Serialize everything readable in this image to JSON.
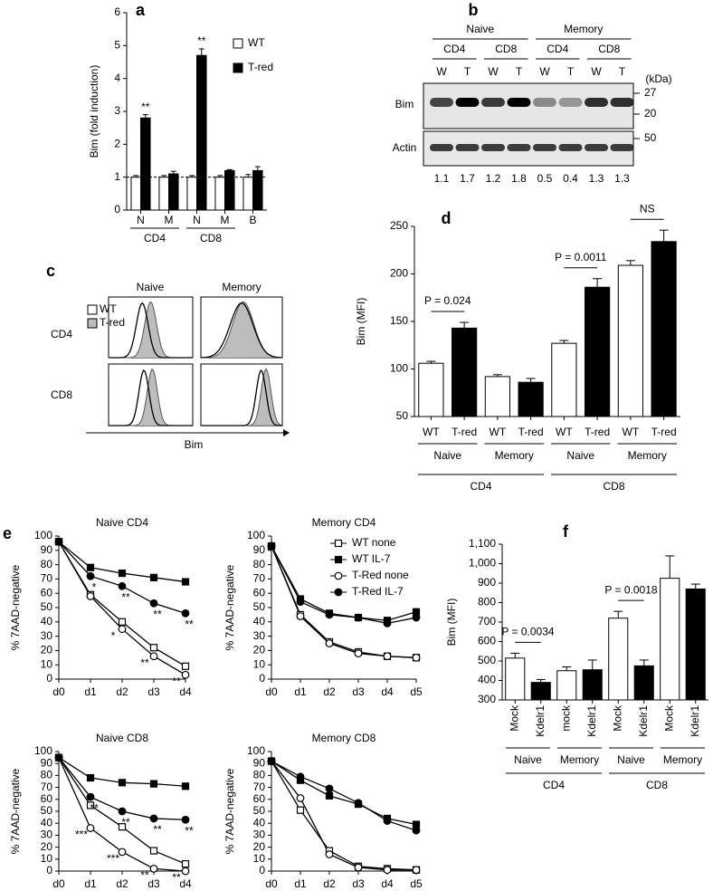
{
  "chart_data": [
    {
      "panel": "a",
      "type": "bar",
      "y_label": "Bim (fold induction)",
      "categories": [
        "N",
        "M",
        "N",
        "M",
        "B"
      ],
      "groups": [
        "CD4",
        "CD8"
      ],
      "series": [
        {
          "name": "WT",
          "color": "#ffffff",
          "values": [
            1,
            1,
            1,
            1,
            1
          ],
          "errors": [
            0.05,
            0.05,
            0.05,
            0.05,
            0.08
          ]
        },
        {
          "name": "T-red",
          "color": "#000000",
          "values": [
            2.8,
            1.1,
            4.7,
            1.2,
            1.2
          ],
          "errors": [
            0.1,
            0.08,
            0.2,
            0.03,
            0.12
          ],
          "annotations": [
            "**",
            null,
            "**",
            null,
            null
          ]
        }
      ],
      "ylim": [
        0,
        6
      ],
      "yticks": [
        0,
        1,
        2,
        3,
        4,
        5,
        6
      ],
      "reference_line": 1,
      "legend": "upper right"
    },
    {
      "panel": "d",
      "type": "bar",
      "y_label": "Bim (MFI)",
      "categories": [
        "WT",
        "T-red",
        "WT",
        "T-red",
        "WT",
        "T-red",
        "WT",
        "T-red"
      ],
      "values": [
        106,
        143,
        92,
        86,
        127,
        186,
        209,
        234
      ],
      "errors": [
        2,
        6,
        2,
        4,
        3,
        9,
        5,
        12
      ],
      "colors": [
        "#ffffff",
        "#000000",
        "#ffffff",
        "#000000",
        "#ffffff",
        "#000000",
        "#ffffff",
        "#000000"
      ],
      "subgroups": [
        "Naive",
        "Memory",
        "Naive",
        "Memory"
      ],
      "groups": [
        "CD4",
        "CD8"
      ],
      "comparisons": [
        "P = 0.024",
        null,
        null,
        null,
        "P = 0.0011",
        null,
        "NS",
        null
      ],
      "ylim": [
        50,
        250
      ],
      "yticks": [
        50,
        100,
        150,
        200,
        250
      ]
    },
    {
      "panel": "e",
      "type": "line",
      "title": "Naive CD4",
      "y_label": "% 7AAD-negative",
      "x": [
        "d0",
        "d1",
        "d2",
        "d3",
        "d4"
      ],
      "series": [
        {
          "name": "WT none",
          "marker": "square",
          "color": "#ffffff",
          "values": [
            96,
            59,
            40,
            22,
            9
          ]
        },
        {
          "name": "WT IL-7",
          "marker": "square",
          "color": "#000000",
          "values": [
            96,
            78,
            74,
            71,
            68
          ]
        },
        {
          "name": "T-Red none",
          "marker": "circle",
          "color": "#ffffff",
          "values": [
            96,
            58,
            35,
            16,
            3
          ],
          "annotations": [
            null,
            null,
            "*",
            "**",
            "**"
          ]
        },
        {
          "name": "T-Red IL-7",
          "marker": "circle",
          "color": "#000000",
          "values": [
            96,
            72,
            65,
            53,
            46
          ],
          "annotations": [
            null,
            "*",
            "**",
            "**",
            "**"
          ]
        }
      ],
      "ylim": [
        0,
        100
      ],
      "yticks": [
        0,
        10,
        20,
        30,
        40,
        50,
        60,
        70,
        80,
        90,
        100
      ]
    },
    {
      "type": "line",
      "title": "Memory CD4",
      "y_label": "% 7AAD-negative",
      "x": [
        "d0",
        "d1",
        "d2",
        "d3",
        "d4",
        "d5"
      ],
      "series": [
        {
          "name": "WT none",
          "marker": "square",
          "color": "#ffffff",
          "values": [
            93,
            45,
            26,
            19,
            16,
            15
          ]
        },
        {
          "name": "WT IL-7",
          "marker": "square",
          "color": "#000000",
          "values": [
            93,
            56,
            46,
            43,
            41,
            47
          ]
        },
        {
          "name": "T-Red none",
          "marker": "circle",
          "color": "#ffffff",
          "values": [
            93,
            44,
            25,
            18,
            16,
            15
          ]
        },
        {
          "name": "T-Red IL-7",
          "marker": "circle",
          "color": "#000000",
          "values": [
            93,
            54,
            45,
            43,
            39,
            43
          ]
        }
      ],
      "ylim": [
        0,
        100
      ],
      "yticks": [
        0,
        10,
        20,
        30,
        40,
        50,
        60,
        70,
        80,
        90,
        100
      ],
      "legend": "upper right"
    },
    {
      "type": "line",
      "title": "Naive CD8",
      "y_label": "% 7AAD-negative",
      "x": [
        "d0",
        "d1",
        "d2",
        "d3",
        "d4"
      ],
      "series": [
        {
          "name": "WT none",
          "marker": "square",
          "color": "#ffffff",
          "values": [
            95,
            55,
            37,
            17,
            6
          ]
        },
        {
          "name": "WT IL-7",
          "marker": "square",
          "color": "#000000",
          "values": [
            95,
            78,
            74,
            73,
            71
          ]
        },
        {
          "name": "T-Red none",
          "marker": "circle",
          "color": "#ffffff",
          "values": [
            95,
            36,
            16,
            2,
            0
          ],
          "annotations": [
            null,
            "***",
            "***",
            "**",
            "**"
          ]
        },
        {
          "name": "T-Red IL-7",
          "marker": "circle",
          "color": "#000000",
          "values": [
            95,
            62,
            50,
            44,
            43
          ],
          "annotations": [
            null,
            "**",
            "**",
            "**",
            "**"
          ]
        }
      ],
      "ylim": [
        0,
        100
      ],
      "yticks": [
        0,
        10,
        20,
        30,
        40,
        50,
        60,
        70,
        80,
        90,
        100
      ]
    },
    {
      "type": "line",
      "title": "Memory CD8",
      "y_label": "% 7AAD-negative",
      "x": [
        "d0",
        "d1",
        "d2",
        "d3",
        "d4",
        "d5"
      ],
      "series": [
        {
          "name": "WT none",
          "marker": "square",
          "color": "#ffffff",
          "values": [
            92,
            51,
            17,
            4,
            2,
            1
          ]
        },
        {
          "name": "WT IL-7",
          "marker": "square",
          "color": "#000000",
          "values": [
            92,
            76,
            63,
            56,
            44,
            39
          ]
        },
        {
          "name": "T-Red none",
          "marker": "circle",
          "color": "#ffffff",
          "values": [
            92,
            61,
            14,
            3,
            1,
            1
          ]
        },
        {
          "name": "T-Red IL-7",
          "marker": "circle",
          "color": "#000000",
          "values": [
            92,
            79,
            69,
            57,
            42,
            34
          ]
        }
      ],
      "ylim": [
        0,
        100
      ],
      "yticks": [
        0,
        10,
        20,
        30,
        40,
        50,
        60,
        70,
        80,
        90,
        100
      ]
    },
    {
      "panel": "f",
      "type": "bar",
      "y_label": "Bim (MFI)",
      "categories": [
        "Mock",
        "Kdelr1",
        "mock",
        "Kdelr1",
        "Mock",
        "Kdelr1",
        "Mock",
        "Kdelr1"
      ],
      "values": [
        515,
        390,
        450,
        455,
        720,
        475,
        925,
        870
      ],
      "errors": [
        25,
        15,
        20,
        50,
        35,
        30,
        115,
        25
      ],
      "colors": [
        "#ffffff",
        "#000000",
        "#ffffff",
        "#000000",
        "#ffffff",
        "#000000",
        "#ffffff",
        "#000000"
      ],
      "subgroups": [
        "Naive",
        "Memory",
        "Naive",
        "Memory"
      ],
      "groups": [
        "CD4",
        "CD8"
      ],
      "comparisons": [
        "P = 0.0034",
        null,
        null,
        null,
        "P = 0.0018",
        null,
        null,
        null
      ],
      "ylim": [
        300,
        1100
      ],
      "yticks": [
        300,
        400,
        500,
        600,
        700,
        800,
        900,
        {
          "value": 1000,
          "label": "1,000"
        },
        {
          "value": 1100,
          "label": "1,100"
        }
      ]
    }
  ],
  "blot": {
    "panel": "b",
    "groups": [
      "Naive",
      "Memory"
    ],
    "cells": [
      "CD4",
      "CD8",
      "CD4",
      "CD8"
    ],
    "lanes": [
      "W",
      "T",
      "W",
      "T",
      "W",
      "T",
      "W",
      "T"
    ],
    "unit": "(kDa)",
    "markers": [
      "27",
      "20",
      "50"
    ],
    "rows": [
      "Bim",
      "Actin"
    ],
    "quantification": [
      1.1,
      1.7,
      1.2,
      1.8,
      0.5,
      0.4,
      1.3,
      1.3
    ]
  },
  "flow": {
    "panel": "c",
    "columns": [
      "Naive",
      "Memory"
    ],
    "rows": [
      "CD4",
      "CD8"
    ],
    "legend": [
      "WT",
      "T-red"
    ],
    "x_label": "Bim"
  }
}
